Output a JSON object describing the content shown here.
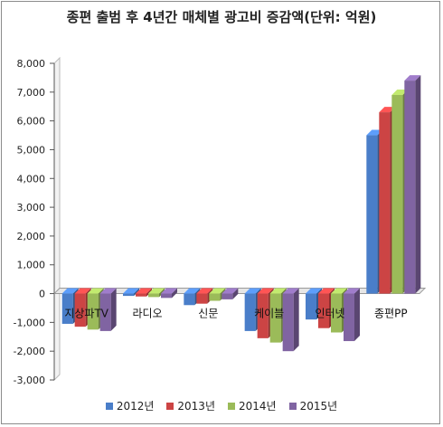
{
  "chart_data": {
    "type": "bar",
    "style": "3d-clustered-column",
    "title": "종편 출범 후 4년간 매체별 광고비 증감액(단위: 억원)",
    "categories": [
      "지상파TV",
      "라디오",
      "신문",
      "케이블",
      "인터넷",
      "종편PP"
    ],
    "series": [
      {
        "name": "2012년",
        "color": "#4a7ec9",
        "values": [
          -1050,
          -80,
          -400,
          -1300,
          -900,
          5500
        ]
      },
      {
        "name": "2013년",
        "color": "#cc4444",
        "values": [
          -1150,
          -100,
          -350,
          -1550,
          -1200,
          6300
        ]
      },
      {
        "name": "2014년",
        "color": "#9bbb59",
        "values": [
          -1250,
          -120,
          -250,
          -1700,
          -1350,
          6900
        ]
      },
      {
        "name": "2015년",
        "color": "#8064a2",
        "values": [
          -1300,
          -150,
          -200,
          -2000,
          -1650,
          7400
        ]
      }
    ],
    "y_ticks": [
      "8,000",
      "7,000",
      "6,000",
      "5,000",
      "4,000",
      "3,000",
      "2,000",
      "1,000",
      "0",
      "-1,000",
      "-2,000",
      "-3,000"
    ],
    "ylim": [
      -3000,
      8000
    ],
    "grid": false,
    "legend_position": "bottom"
  }
}
